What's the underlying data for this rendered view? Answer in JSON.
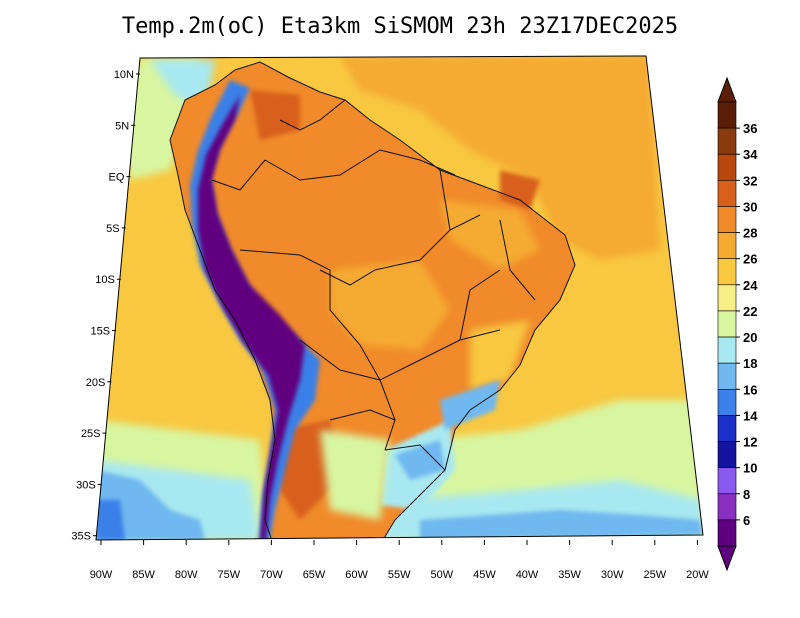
{
  "title": "Temp.2m(oC) Eta3km SiSMOM 23h 23Z17DEC2025",
  "lat_ticks": [
    "10N",
    "5N",
    "EQ",
    "5S",
    "10S",
    "15S",
    "20S",
    "25S",
    "30S",
    "35S"
  ],
  "lon_ticks": [
    "90W",
    "85W",
    "80W",
    "75W",
    "70W",
    "65W",
    "60W",
    "55W",
    "50W",
    "45W",
    "40W",
    "35W",
    "30W",
    "25W",
    "20W"
  ],
  "colorbar": {
    "labels": [
      "36",
      "34",
      "32",
      "30",
      "28",
      "26",
      "24",
      "22",
      "20",
      "18",
      "16",
      "14",
      "12",
      "10",
      "8",
      "6"
    ],
    "colors": [
      "#5a1e08",
      "#8b3a10",
      "#b8480e",
      "#d8601a",
      "#f08a2a",
      "#f5aa30",
      "#f8c840",
      "#f8ee88",
      "#d8f5a0",
      "#a8e8f0",
      "#70b8f0",
      "#3a80e8",
      "#1a30c8",
      "#1414a0",
      "#8a5af0",
      "#8a30c0",
      "#600080"
    ],
    "under_color": "#600080",
    "over_color": "#5a1e08"
  },
  "map_colors": {
    "ocean_warm": "#f5aa30",
    "ocean_mild": "#f8c840",
    "ocean_cool": "#d8f5a0",
    "ocean_cold": "#a8e8f0",
    "ocean_south": "#70b8f0",
    "land_hot": "#f08a2a",
    "land_very_hot": "#d8601a",
    "andes_cold": "#3a80e8",
    "andes_very_cold": "#600080"
  }
}
